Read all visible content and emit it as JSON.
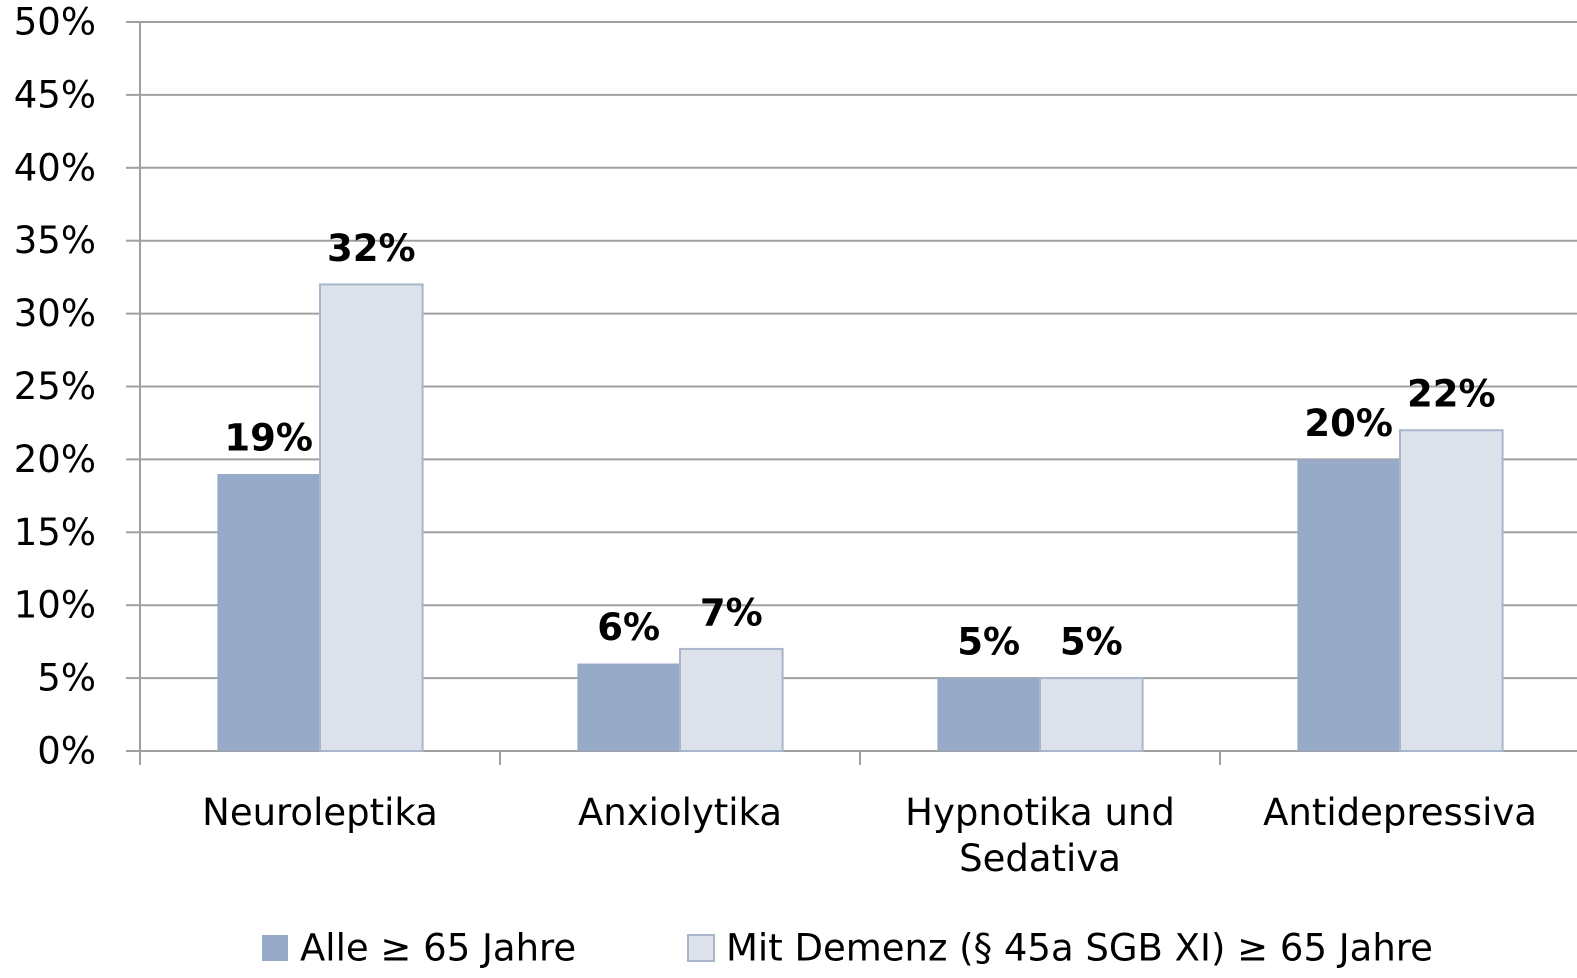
{
  "chart_data": {
    "type": "bar",
    "categories": [
      "Neuroleptika",
      "Anxiolytika",
      "Hypnotika und Sedativa",
      "Antidepressiva"
    ],
    "series": [
      {
        "name": "Alle  ≥ 65 Jahre",
        "color": "#97abc8",
        "values": [
          19,
          6,
          5,
          20
        ],
        "value_labels": [
          "19%",
          "6%",
          "5%",
          "20%"
        ]
      },
      {
        "name": "Mit Demenz (§ 45a SGB XI) ≥ 65 Jahre",
        "color": "#dce1ea",
        "values": [
          32,
          7,
          5,
          22
        ],
        "value_labels": [
          "32%",
          "7%",
          "5%",
          "22%"
        ]
      }
    ],
    "ylim": [
      0,
      50
    ],
    "yticks": [
      {
        "value": 0,
        "label": "0%"
      },
      {
        "value": 5,
        "label": "5%"
      },
      {
        "value": 10,
        "label": "10%"
      },
      {
        "value": 15,
        "label": "15%"
      },
      {
        "value": 20,
        "label": "20%"
      },
      {
        "value": 25,
        "label": "25%"
      },
      {
        "value": 30,
        "label": "30%"
      },
      {
        "value": 35,
        "label": "35%"
      },
      {
        "value": 40,
        "label": "40%"
      },
      {
        "value": 45,
        "label": "45%"
      },
      {
        "value": 50,
        "label": "50%"
      }
    ],
    "grid": true,
    "legend": "bottom"
  }
}
